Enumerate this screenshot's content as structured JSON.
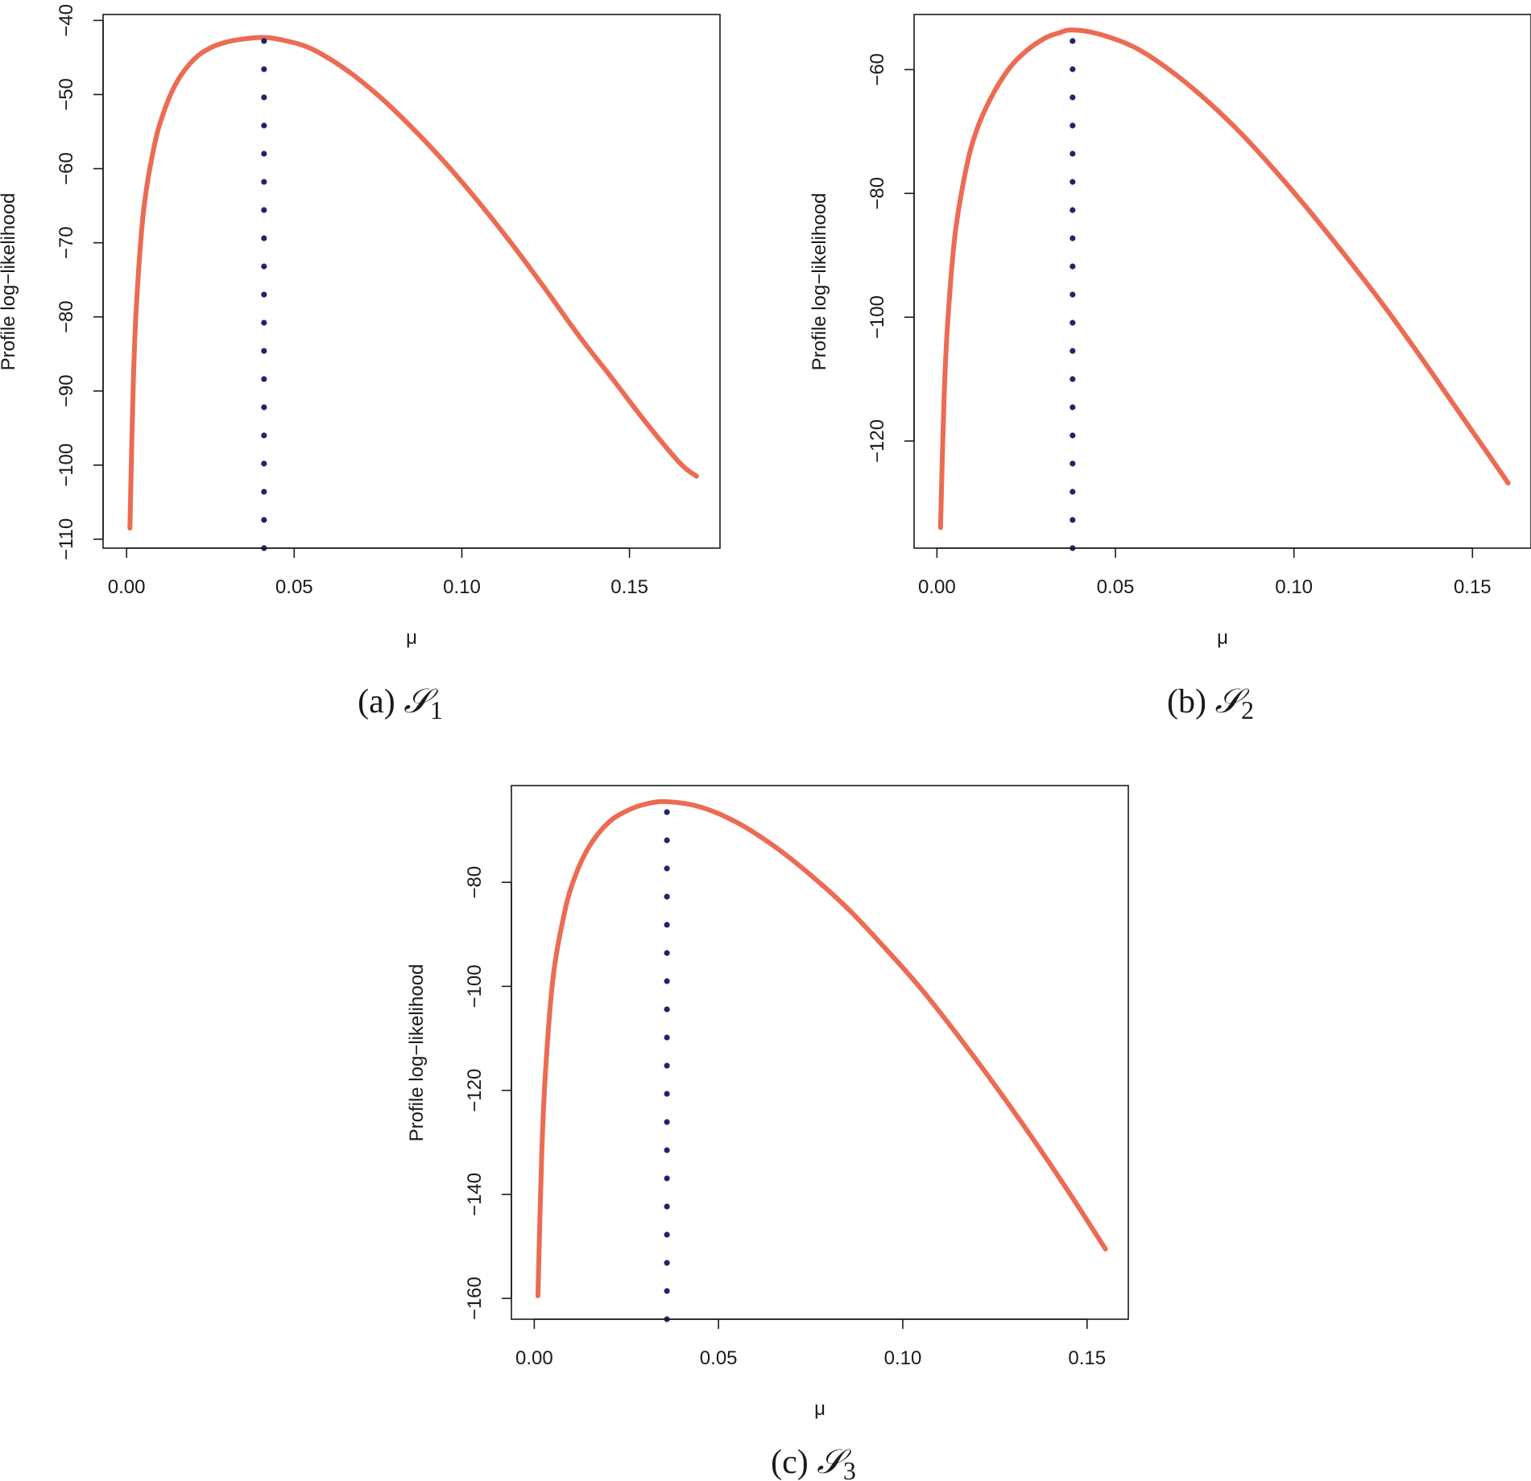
{
  "figure": {
    "colors": {
      "curve": "#ec6b52",
      "mle_marker": "#23236b",
      "axes": "#1a1a1a"
    }
  },
  "chart_data": [
    {
      "type": "line",
      "panel": "a",
      "caption": {
        "prefix": "(a) ",
        "script": "𝒮",
        "subscript": "1"
      },
      "xlabel": "μ",
      "ylabel": "Profile log−likelihood",
      "xlim": [
        -0.007,
        0.177
      ],
      "ylim": [
        -111.2,
        -39.2
      ],
      "x_ticks": [
        0.0,
        0.05,
        0.1,
        0.15
      ],
      "x_tick_labels": [
        "0.00",
        "0.05",
        "0.10",
        "0.15"
      ],
      "y_ticks": [
        -110,
        -100,
        -90,
        -80,
        -70,
        -60,
        -50,
        -40
      ],
      "y_tick_labels": [
        "−110",
        "−100",
        "−90",
        "−80",
        "−70",
        "−60",
        "−50",
        "−40"
      ],
      "series": [
        {
          "name": "profile log-likelihood",
          "x": [
            0.001,
            0.002,
            0.003,
            0.005,
            0.008,
            0.011,
            0.015,
            0.02,
            0.025,
            0.03,
            0.035,
            0.041,
            0.047,
            0.055,
            0.065,
            0.075,
            0.085,
            0.095,
            0.105,
            0.115,
            0.125,
            0.135,
            0.145,
            0.155,
            0.165,
            0.17
          ],
          "y": [
            -108.5,
            -89,
            -78,
            -66,
            -57.5,
            -52.5,
            -48.3,
            -45.3,
            -43.7,
            -42.9,
            -42.5,
            -42.3,
            -42.7,
            -43.8,
            -46.5,
            -50.1,
            -54.4,
            -59.2,
            -64.5,
            -70.2,
            -76.3,
            -82.6,
            -88.4,
            -94.3,
            -99.7,
            -101.5
          ]
        }
      ],
      "mle": {
        "label": "MLE",
        "x": 0.041
      }
    },
    {
      "type": "line",
      "panel": "b",
      "caption": {
        "prefix": "(b) ",
        "script": "𝒮",
        "subscript": "2"
      },
      "xlabel": "μ",
      "ylabel": "Profile log−likelihood",
      "xlim": [
        -0.0064,
        0.1664
      ],
      "ylim": [
        -137.3,
        -51.1
      ],
      "x_ticks": [
        0.0,
        0.05,
        0.1,
        0.15
      ],
      "x_tick_labels": [
        "0.00",
        "0.05",
        "0.10",
        "0.15"
      ],
      "y_ticks": [
        -120,
        -100,
        -80,
        -60
      ],
      "y_tick_labels": [
        "−120",
        "−100",
        "−80",
        "−60"
      ],
      "series": [
        {
          "name": "profile log-likelihood",
          "x": [
            0.001,
            0.002,
            0.003,
            0.005,
            0.008,
            0.011,
            0.015,
            0.02,
            0.025,
            0.03,
            0.034,
            0.038,
            0.045,
            0.055,
            0.065,
            0.075,
            0.085,
            0.095,
            0.105,
            0.115,
            0.125,
            0.135,
            0.145,
            0.155,
            0.16
          ],
          "y": [
            -134,
            -113,
            -101,
            -87,
            -76.5,
            -70,
            -64.7,
            -60,
            -57,
            -55,
            -54.1,
            -53.6,
            -54.2,
            -56.3,
            -60,
            -64.7,
            -70.2,
            -76.5,
            -83.3,
            -90.5,
            -98,
            -106,
            -114.3,
            -122.6,
            -126.8
          ]
        }
      ],
      "mle": {
        "label": "MLE",
        "x": 0.038
      }
    },
    {
      "type": "line",
      "panel": "c",
      "caption": {
        "prefix": "(c) ",
        "script": "𝒮",
        "subscript": "3"
      },
      "xlabel": "μ",
      "ylabel": "Profile log−likelihood",
      "xlim": [
        -0.0062,
        0.1612
      ],
      "ylim": [
        -164.0,
        -61.4
      ],
      "x_ticks": [
        0.0,
        0.05,
        0.1,
        0.15
      ],
      "x_tick_labels": [
        "0.00",
        "0.05",
        "0.10",
        "0.15"
      ],
      "y_ticks": [
        -160,
        -140,
        -120,
        -100,
        -80
      ],
      "y_tick_labels": [
        "−160",
        "−140",
        "−120",
        "−100",
        "−80"
      ],
      "series": [
        {
          "name": "profile log-likelihood",
          "x": [
            0.001,
            0.002,
            0.003,
            0.005,
            0.008,
            0.011,
            0.015,
            0.02,
            0.025,
            0.03,
            0.036,
            0.045,
            0.055,
            0.065,
            0.075,
            0.085,
            0.095,
            0.105,
            0.115,
            0.125,
            0.135,
            0.145,
            0.155
          ],
          "y": [
            -159.5,
            -133,
            -117,
            -99,
            -86.5,
            -79,
            -73,
            -68.6,
            -66.3,
            -65,
            -64.5,
            -65.5,
            -68.5,
            -73,
            -78.6,
            -85,
            -92.5,
            -100.5,
            -109.5,
            -119,
            -129,
            -139.5,
            -150.5
          ]
        }
      ],
      "mle": {
        "label": "MLE",
        "x": 0.036
      }
    }
  ]
}
